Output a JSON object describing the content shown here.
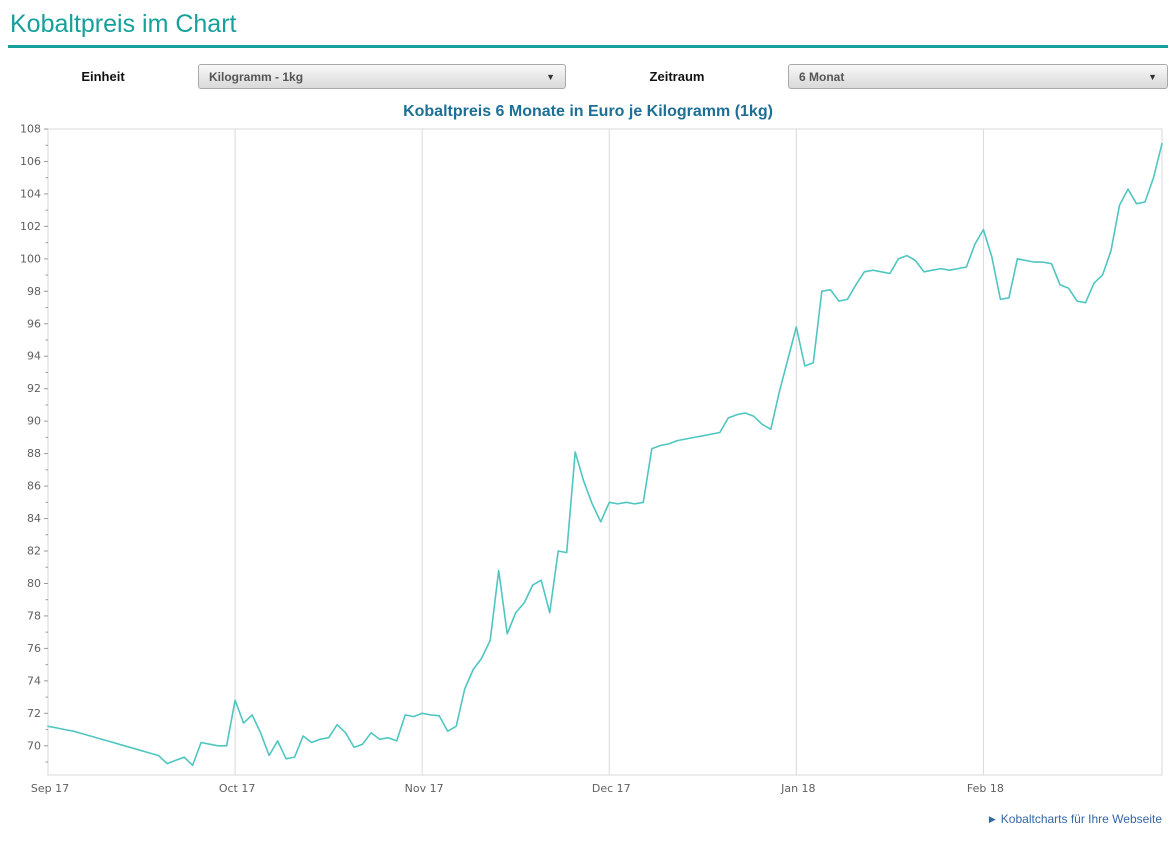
{
  "page": {
    "title": "Kobaltpreis im Chart",
    "accent_color": "#16a09c"
  },
  "controls": {
    "unit": {
      "label": "Einheit",
      "selected": "Kilogramm - 1kg"
    },
    "period": {
      "label": "Zeitraum",
      "selected": "6 Monat"
    }
  },
  "chart_data": {
    "type": "line",
    "title": "Kobaltpreis 6 Monate in Euro je Kilogramm (1kg)",
    "title_color": "#1d6f96",
    "line_color": "#4fc6c1",
    "grid_color": "#d9d9d9",
    "axis_tick_color": "#9a9a9a",
    "legend": "none",
    "xlabel": "",
    "ylabel": "",
    "ylim": [
      68.2,
      108
    ],
    "y_axis": {
      "min": 68.2,
      "max": 108,
      "tick_start": 70,
      "tick_end": 108,
      "tick_step": 2,
      "minor_tick_step": 1
    },
    "x_ticks": [
      {
        "label": "Sep 17",
        "index": 0
      },
      {
        "label": "Oct 17",
        "index": 22
      },
      {
        "label": "Nov 17",
        "index": 44
      },
      {
        "label": "Dec 17",
        "index": 66
      },
      {
        "label": "Jan 18",
        "index": 88
      },
      {
        "label": "Feb 18",
        "index": 110
      }
    ],
    "series": [
      {
        "name": "Kobaltpreis in Euro je Kilogramm",
        "values": [
          71.2,
          71.1,
          71.0,
          70.9,
          70.75,
          70.6,
          70.45,
          70.3,
          70.15,
          70.0,
          69.85,
          69.7,
          69.55,
          69.4,
          68.9,
          69.1,
          69.3,
          68.8,
          70.2,
          70.1,
          70.0,
          70.0,
          72.8,
          71.4,
          71.9,
          70.8,
          69.4,
          70.3,
          69.2,
          69.3,
          70.6,
          70.2,
          70.4,
          70.5,
          71.3,
          70.8,
          69.9,
          70.1,
          70.8,
          70.4,
          70.5,
          70.3,
          71.9,
          71.8,
          72.0,
          71.9,
          71.85,
          70.9,
          71.2,
          73.5,
          74.7,
          75.4,
          76.5,
          80.8,
          76.9,
          78.2,
          78.8,
          79.9,
          80.2,
          78.2,
          82.0,
          81.9,
          88.1,
          86.3,
          84.9,
          83.8,
          85.0,
          84.9,
          85.0,
          84.9,
          85.0,
          88.3,
          88.5,
          88.6,
          88.8,
          88.9,
          89.0,
          89.1,
          89.2,
          89.3,
          90.2,
          90.4,
          90.5,
          90.3,
          89.8,
          89.5,
          91.8,
          93.8,
          95.8,
          93.4,
          93.6,
          98.0,
          98.1,
          97.4,
          97.5,
          98.4,
          99.2,
          99.3,
          99.2,
          99.1,
          100.0,
          100.2,
          99.9,
          99.2,
          99.3,
          99.4,
          99.3,
          99.4,
          99.5,
          100.9,
          101.8,
          100.1,
          97.5,
          97.6,
          100.0,
          99.9,
          99.8,
          99.8,
          99.7,
          98.4,
          98.2,
          97.4,
          97.3,
          98.5,
          99.0,
          100.5,
          103.3,
          104.3,
          103.4,
          103.5,
          105.0,
          107.1
        ]
      }
    ]
  },
  "footer": {
    "link": {
      "icon": "chevron-right-icon",
      "label": "Kobaltcharts für Ihre Webseite",
      "color": "#3467a8"
    }
  }
}
